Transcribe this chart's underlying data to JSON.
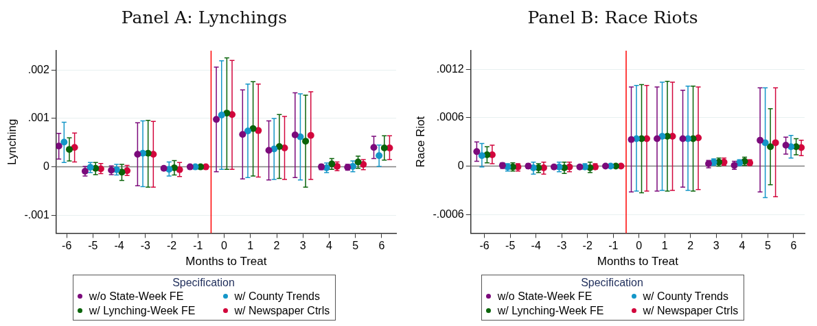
{
  "chart_data": [
    {
      "type": "scatter",
      "title": "Panel A: Lynchings",
      "xlabel": "Months to Treat",
      "ylabel": "Lynching",
      "legend_title": "Specification",
      "legend": "bottom",
      "marker": "circle",
      "grid": "y",
      "xlim": [
        -6.4,
        6.55
      ],
      "xticks": [
        -6,
        -5,
        -4,
        -3,
        -2,
        -1,
        0,
        1,
        2,
        3,
        4,
        5,
        6
      ],
      "ylim": [
        -0.00137,
        0.0024
      ],
      "yticks": [
        {
          "value": -0.001,
          "label": "-.001"
        },
        {
          "value": 0,
          "label": "0"
        },
        {
          "value": 0.001,
          "label": ".001"
        },
        {
          "value": 0.002,
          "label": ".002"
        }
      ],
      "ref_lines": [
        {
          "axis": "y",
          "value": 0,
          "color": "#7f7f7f"
        },
        {
          "axis": "x",
          "value": -0.5,
          "color": "#ff0000"
        }
      ],
      "series": [
        {
          "name": "w/o State-Week FE",
          "color": "#7b0a7b",
          "x": [
            -6.3,
            -5.3,
            -4.3,
            -3.3,
            -2.3,
            -1.3,
            -0.3,
            0.7,
            1.7,
            2.7,
            3.7,
            4.7,
            5.7
          ],
          "values": [
            0.00043,
            -9e-05,
            -7e-05,
            0.00026,
            -3e-05,
            0,
            0.00098,
            0.00067,
            0.00034,
            0.00066,
            0,
            -1e-05,
            0.0004
          ],
          "errors": [
            [
              0.00016,
              0.00069
            ],
            [
              -0.00019,
              1e-05
            ],
            [
              -0.00016,
              2e-05
            ],
            [
              -0.00039,
              0.00091
            ],
            null,
            null,
            [
              -0.0001,
              0.00206
            ],
            [
              -0.00025,
              0.00159
            ],
            [
              -0.00027,
              0.00095
            ],
            [
              -0.00022,
              0.00153
            ],
            [
              -6e-05,
              5e-05
            ],
            [
              -7e-05,
              5e-05
            ],
            [
              0.00017,
              0.00063
            ]
          ]
        },
        {
          "name": "w/ County Trends",
          "color": "#1496c8",
          "x": [
            -6.1,
            -5.1,
            -4.1,
            -3.1,
            -2.1,
            -1.1,
            -0.1,
            0.9,
            1.9,
            2.9,
            3.9,
            4.9,
            5.9
          ],
          "values": [
            0.00051,
            -1e-05,
            -6e-05,
            0.00028,
            -5e-05,
            0,
            0.00107,
            0.00074,
            0.00037,
            0.00062,
            -2e-05,
            1e-05,
            0.00023
          ],
          "errors": [
            [
              9e-05,
              0.00092
            ],
            [
              -0.00012,
              9e-05
            ],
            [
              -0.00017,
              5e-05
            ],
            [
              -0.00041,
              0.00095
            ],
            [
              -0.00019,
              0.0001
            ],
            null,
            [
              -5e-05,
              0.00219
            ],
            [
              -0.00022,
              0.00171
            ],
            [
              -0.00026,
              0.001
            ],
            [
              -0.00027,
              0.00151
            ],
            [
              -0.00012,
              8e-05
            ],
            [
              -0.0001,
              0.00012
            ],
            [
              1e-05,
              0.00045
            ]
          ]
        },
        {
          "name": "w/ Lynching-Week FE",
          "color": "#0a640a",
          "x": [
            -5.9,
            -4.9,
            -3.9,
            -2.9,
            -1.9,
            -0.9,
            0.1,
            1.1,
            2.1,
            3.1,
            4.1,
            5.1,
            6.1
          ],
          "values": [
            0.00036,
            -3e-05,
            -0.00011,
            0.00028,
            -2e-05,
            0,
            0.00111,
            0.00079,
            0.00042,
            0.00053,
            6e-05,
            0.0001,
            0.00039
          ],
          "errors": [
            [
              0.00012,
              0.0006
            ],
            [
              -0.00016,
              9e-05
            ],
            [
              -0.00028,
              5e-05
            ],
            [
              -0.00042,
              0.00096
            ],
            [
              -0.00017,
              0.00013
            ],
            null,
            [
              -5e-05,
              0.00225
            ],
            [
              -0.00019,
              0.00176
            ],
            [
              -0.00024,
              0.00108
            ],
            [
              -0.00042,
              0.00148
            ],
            [
              -5e-05,
              0.00017
            ],
            [
              -3e-05,
              0.00022
            ],
            [
              0.00014,
              0.00064
            ]
          ]
        },
        {
          "name": "w/ Newspaper Ctrls",
          "color": "#d2063c",
          "x": [
            -5.7,
            -4.7,
            -3.7,
            -2.7,
            -1.7,
            -0.7,
            0.3,
            1.3,
            2.3,
            3.3,
            4.3,
            5.3,
            6.3
          ],
          "values": [
            0.0004,
            -4e-05,
            -8e-05,
            0.00026,
            -6e-05,
            0,
            0.00108,
            0.00075,
            0.00039,
            0.00065,
            1e-05,
            5e-05,
            0.00039
          ],
          "errors": [
            [
              0.0001,
              0.0007
            ],
            [
              -0.00014,
              7e-05
            ],
            [
              -0.00018,
              3e-05
            ],
            [
              -0.00042,
              0.00094
            ],
            [
              -0.0002,
              9e-05
            ],
            null,
            [
              -5e-05,
              0.0022
            ],
            [
              -0.00021,
              0.00171
            ],
            [
              -0.00026,
              0.00104
            ],
            [
              -0.00026,
              0.00155
            ],
            [
              -8e-05,
              0.0001
            ],
            [
              -6e-05,
              0.00015
            ],
            [
              0.00015,
              0.00064
            ]
          ]
        }
      ]
    },
    {
      "type": "scatter",
      "title": "Panel B: Race Riots",
      "xlabel": "Months to Treat",
      "ylabel": "Race Riot",
      "legend_title": "Specification",
      "legend": "bottom",
      "marker": "circle",
      "grid": "y",
      "xlim": [
        -6.53,
        6.43
      ],
      "xticks": [
        -6,
        -5,
        -4,
        -3,
        -2,
        -1,
        0,
        1,
        2,
        3,
        4,
        5,
        6
      ],
      "ylim": [
        -0.00083,
        0.00143
      ],
      "yticks": [
        {
          "value": -0.0006,
          "label": "-.0006"
        },
        {
          "value": 0,
          "label": "0"
        },
        {
          "value": 0.0006,
          "label": ".0006"
        },
        {
          "value": 0.0012,
          "label": ".0012"
        }
      ],
      "ref_lines": [
        {
          "axis": "y",
          "value": 0,
          "color": "#7f7f7f"
        },
        {
          "axis": "x",
          "value": -0.5,
          "color": "#ff0000"
        }
      ],
      "series": [
        {
          "name": "w/o State-Week FE",
          "color": "#7b0a7b",
          "x": [
            -6.3,
            -5.3,
            -4.3,
            -3.3,
            -2.3,
            -1.3,
            -0.3,
            0.7,
            1.7,
            2.7,
            3.7,
            4.7,
            5.7
          ],
          "values": [
            0.00018,
            1e-05,
            0,
            -1e-05,
            -1e-05,
            0,
            0.00033,
            0.00034,
            0.00034,
            3e-05,
            1e-05,
            0.00032,
            0.00026
          ],
          "errors": [
            [
              6e-05,
              0.0003
            ],
            [
              -3e-05,
              4e-05
            ],
            [
              -3e-05,
              3e-05
            ],
            [
              -3e-05,
              1e-05
            ],
            null,
            null,
            [
              -0.00032,
              0.00098
            ],
            [
              -0.00031,
              0.00098
            ],
            [
              -0.00026,
              0.00094
            ],
            [
              -2e-05,
              7e-05
            ],
            [
              -4e-05,
              6e-05
            ],
            [
              -0.00032,
              0.00097
            ],
            [
              0.00015,
              0.00036
            ]
          ]
        },
        {
          "name": "w/ County Trends",
          "color": "#1496c8",
          "x": [
            -6.1,
            -5.1,
            -4.1,
            -3.1,
            -2.1,
            -1.1,
            -0.1,
            0.9,
            1.9,
            2.9,
            3.9,
            4.9,
            5.9
          ],
          "values": [
            0.00013,
            -1e-05,
            -2e-05,
            -1e-05,
            -1e-05,
            0,
            0.00034,
            0.00037,
            0.00034,
            5e-05,
            4e-05,
            0.00029,
            0.00024
          ],
          "errors": [
            [
              -1e-05,
              0.00028
            ],
            [
              -6e-05,
              3e-05
            ],
            [
              -0.0001,
              5e-05
            ],
            [
              -7e-05,
              5e-05
            ],
            [
              -4e-05,
              3e-05
            ],
            null,
            [
              -0.00031,
              0.001
            ],
            [
              -0.0003,
              0.00104
            ],
            [
              -0.0003,
              0.00099
            ],
            [
              1e-05,
              9e-05
            ],
            [
              1e-05,
              8e-05
            ],
            [
              -0.00039,
              0.00097
            ],
            [
              0.0001,
              0.00038
            ]
          ]
        },
        {
          "name": "w/ Lynching-Week FE",
          "color": "#0a640a",
          "x": [
            -5.9,
            -4.9,
            -3.9,
            -2.9,
            -1.9,
            -0.9,
            0.1,
            1.1,
            2.1,
            3.1,
            4.1,
            5.1,
            6.1
          ],
          "values": [
            0.00014,
            -1e-05,
            -2e-05,
            -2e-05,
            -2e-05,
            0,
            0.00034,
            0.00037,
            0.00034,
            5e-05,
            6e-05,
            0.00024,
            0.00024
          ],
          "errors": [
            [
              4e-05,
              0.00024
            ],
            [
              -6e-05,
              4e-05
            ],
            [
              -8e-05,
              3e-05
            ],
            [
              -9e-05,
              5e-05
            ],
            [
              -8e-05,
              5e-05
            ],
            null,
            [
              -0.00033,
              0.00101
            ],
            [
              -0.00031,
              0.00105
            ],
            [
              -0.00031,
              0.00099
            ],
            [
              0,
              0.0001
            ],
            [
              1e-05,
              0.00011
            ],
            [
              -0.00023,
              0.00071
            ],
            [
              0.00014,
              0.00034
            ]
          ]
        },
        {
          "name": "w/ Newspaper Ctrls",
          "color": "#d2063c",
          "x": [
            -5.7,
            -4.7,
            -3.7,
            -2.7,
            -1.7,
            -0.7,
            0.3,
            1.3,
            2.3,
            3.3,
            4.3,
            5.3,
            6.3
          ],
          "values": [
            0.00014,
            -1e-05,
            -2e-05,
            -1e-05,
            -1e-05,
            0,
            0.00034,
            0.00037,
            0.00035,
            5e-05,
            4e-05,
            0.00029,
            0.00023
          ],
          "errors": [
            [
              3e-05,
              0.00026
            ],
            [
              -6e-05,
              3e-05
            ],
            [
              -0.0001,
              5e-05
            ],
            [
              -7e-05,
              5e-05
            ],
            [
              -4e-05,
              3e-05
            ],
            null,
            [
              -0.00031,
              0.001
            ],
            [
              -0.0003,
              0.00104
            ],
            [
              -0.00029,
              0.00098
            ],
            [
              1e-05,
              0.0001
            ],
            [
              1e-05,
              8e-05
            ],
            [
              -0.00038,
              0.00097
            ],
            [
              0.00013,
              0.00032
            ]
          ]
        }
      ]
    }
  ]
}
